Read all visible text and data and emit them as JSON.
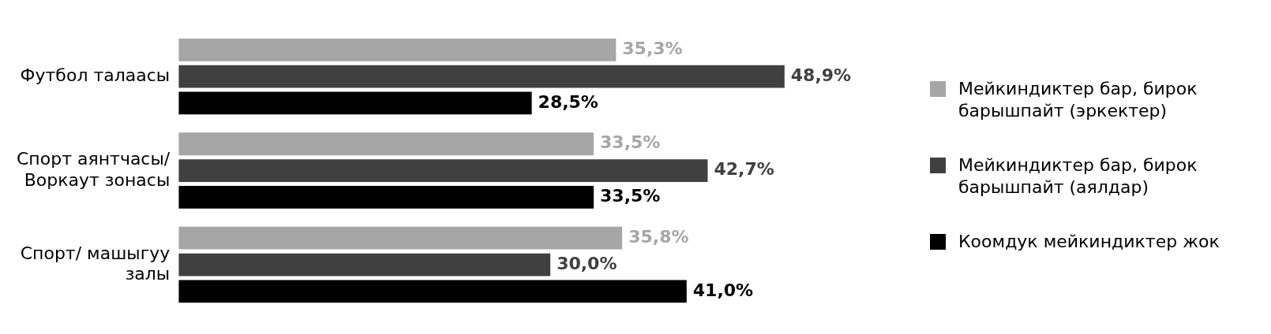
{
  "chart_data": {
    "type": "bar",
    "orientation": "horizontal",
    "legend": "right",
    "categories": [
      "Футбол талаасы",
      "Спорт аянтчасы/ Воркаут зонасы",
      "Спорт/ машыгуу залы"
    ],
    "series": [
      {
        "name": "Мейкиндиктер бар, бирок барышпайт (эркектер)",
        "color": "#a6a6a6",
        "values": [
          35.3,
          33.5,
          35.8
        ],
        "value_labels": [
          "35,3%",
          "33,5%",
          "35,8%"
        ]
      },
      {
        "name": "Мейкиндиктер бар, бирок барышпайт (аялдар)",
        "color": "#404040",
        "values": [
          48.9,
          42.7,
          30.0
        ],
        "value_labels": [
          "48,9%",
          "42,7%",
          "30,0%"
        ]
      },
      {
        "name": "Коомдук мейкиндиктер жок",
        "color": "#000000",
        "values": [
          28.5,
          33.5,
          41.0
        ],
        "value_labels": [
          "28,5%",
          "33,5%",
          "41,0%"
        ]
      }
    ]
  }
}
